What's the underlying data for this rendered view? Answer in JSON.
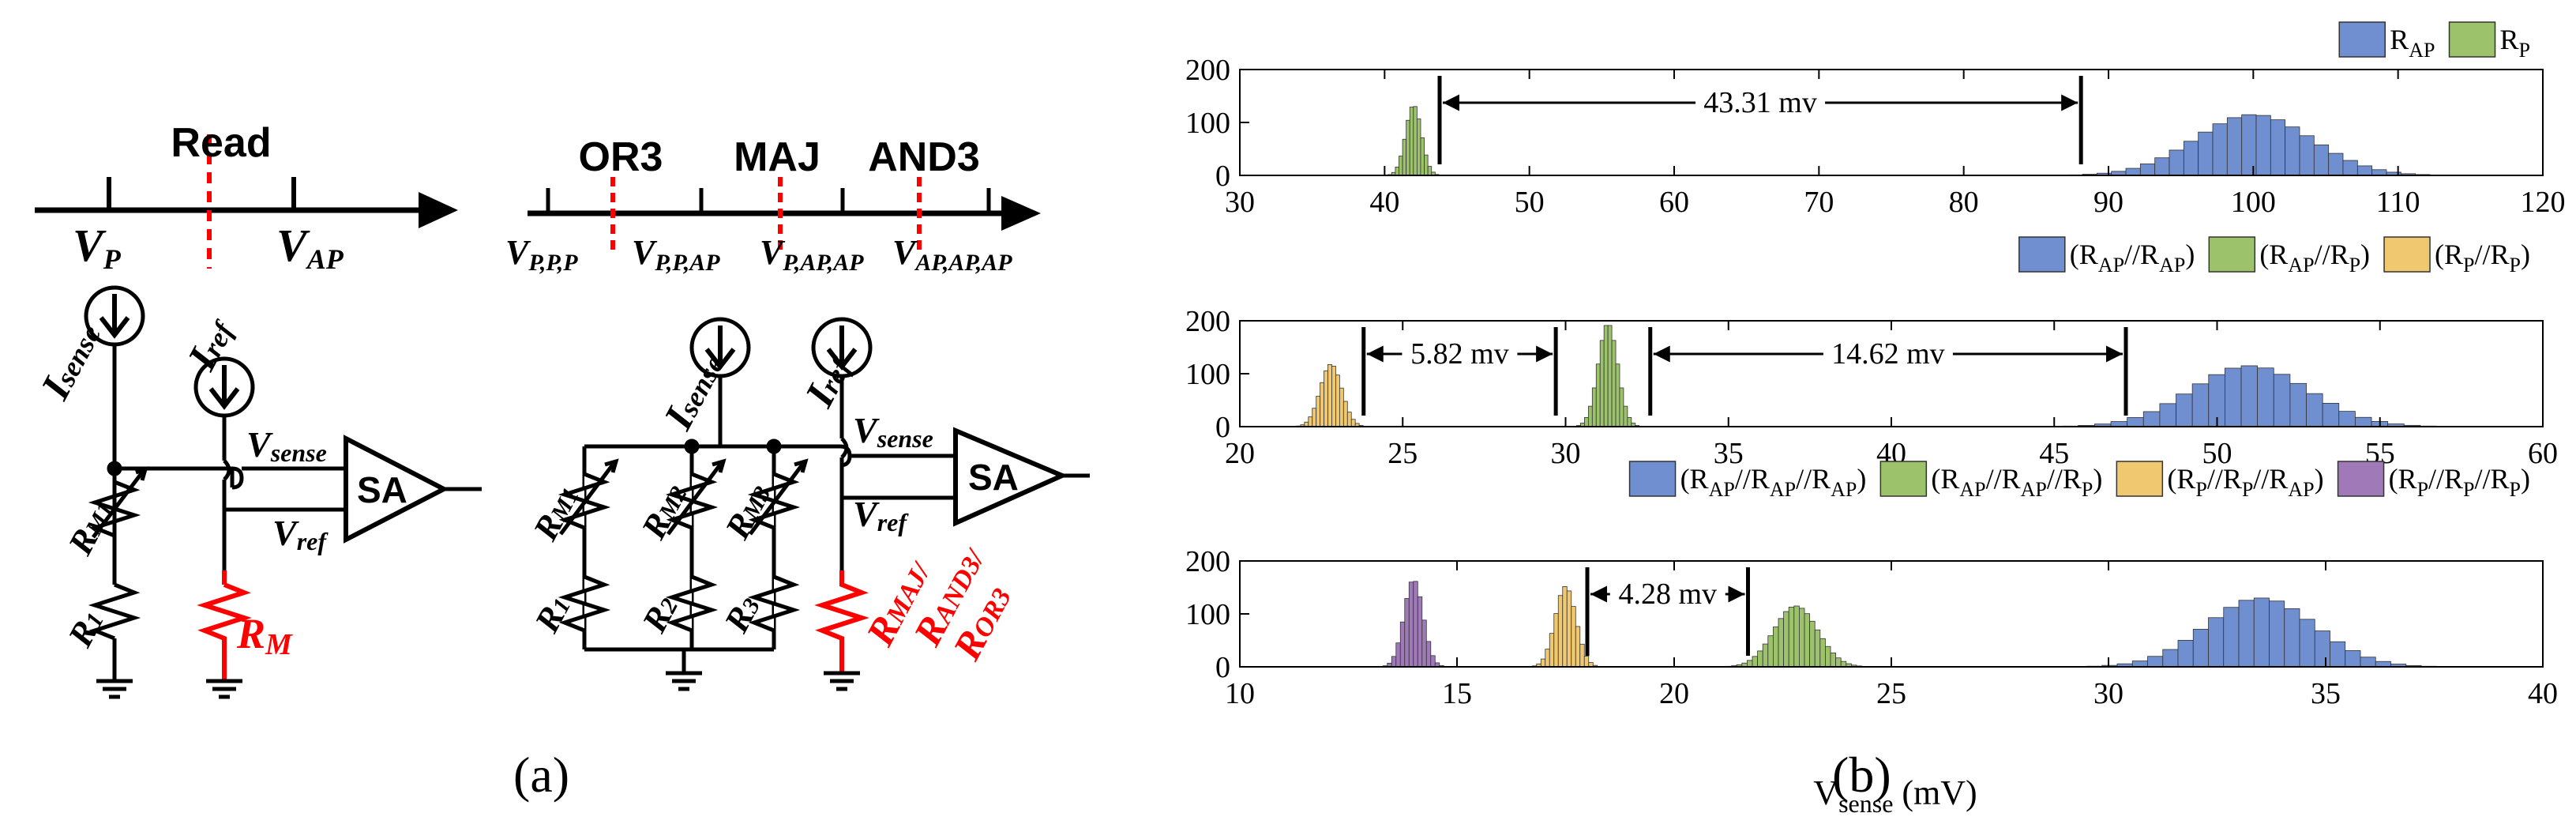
{
  "panel_a": {
    "label": "(a)",
    "read_timeline": {
      "title": "Read",
      "v_p": "V",
      "v_p_sub": "P",
      "v_ap": "V",
      "v_ap_sub": "AP"
    },
    "ops_timeline": {
      "op1": "OR3",
      "op2": "MAJ",
      "op3": "AND3",
      "t1": "V",
      "t1_sub": "P,P,P",
      "t2": "V",
      "t2_sub": "P,P,AP",
      "t3": "V",
      "t3_sub": "P,AP,AP",
      "t4": "V",
      "t4_sub": "AP,AP,AP"
    },
    "circuit1": {
      "isense": "I",
      "isense_sub": "sense",
      "iref": "I",
      "iref_sub": "ref",
      "vsense": "V",
      "vsense_sub": "sense",
      "vref": "V",
      "vref_sub": "ref",
      "sa": "SA",
      "rm1": "R",
      "rm1_sub": "M1",
      "r1": "R",
      "r1_sub": "1",
      "rm": "R",
      "rm_sub": "M"
    },
    "circuit2": {
      "isense": "I",
      "isense_sub": "sense",
      "iref": "I",
      "iref_sub": "ref",
      "vsense": "V",
      "vsense_sub": "sense",
      "vref": "V",
      "vref_sub": "ref",
      "sa": "SA",
      "rm1": "R",
      "rm1_sub": "M1",
      "rm2": "R",
      "rm2_sub": "M2",
      "rm3": "R",
      "rm3_sub": "M3",
      "r1": "R",
      "r1_sub": "1",
      "r2": "R",
      "r2_sub": "2",
      "r3": "R",
      "r3_sub": "3",
      "rmaj": "R",
      "rmaj_sub": "MAJ/",
      "rand3": "R",
      "rand3_sub": "AND3/",
      "ror3": "R",
      "ror3_sub": "OR3"
    },
    "red": "#ff0000"
  },
  "panel_b": {
    "label": "(b)",
    "xlabel": "V",
    "xlabel_sub": "sense",
    "xlabel_unit": " (mV)"
  },
  "chart_data": [
    {
      "type": "histogram",
      "xlim": [
        30,
        120
      ],
      "ylim": [
        0,
        200
      ],
      "xticks": [
        30,
        40,
        50,
        60,
        70,
        80,
        90,
        100,
        110,
        120
      ],
      "yticks": [
        0,
        100,
        200
      ],
      "legend": [
        {
          "main": "R",
          "sub": "AP",
          "color": "#6f8fd0"
        },
        {
          "main": "R",
          "sub": "P",
          "color": "#9cc36c"
        }
      ],
      "series": [
        {
          "name": "RP",
          "color": "#9cc36c",
          "center": 42,
          "peak": 133,
          "width": 0.55,
          "bin": 0.25
        },
        {
          "name": "RAP",
          "color": "#6f8fd0",
          "center": 100,
          "peak": 115,
          "width": 4.0,
          "bin": 1.0
        }
      ],
      "annotations": [
        {
          "x1": 43.8,
          "x2": 88.1,
          "text": "43.31 mv"
        }
      ]
    },
    {
      "type": "histogram",
      "xlim": [
        20,
        60
      ],
      "ylim": [
        0,
        200
      ],
      "xticks": [
        20,
        25,
        30,
        35,
        40,
        45,
        50,
        55,
        60
      ],
      "yticks": [
        0,
        100,
        200
      ],
      "legend": [
        {
          "text": "(R",
          "sub": "AP",
          "text2": "//R",
          "sub2": "AP",
          "text3": ")",
          "color": "#6f8fd0"
        },
        {
          "text": "(R",
          "sub": "AP",
          "text2": "//R",
          "sub2": "P",
          "text3": ")",
          "color": "#9cc36c"
        },
        {
          "text": "(R",
          "sub": "P",
          "text2": "//R",
          "sub2": "P",
          "text3": ")",
          "color": "#f0c870"
        }
      ],
      "series": [
        {
          "name": "RP//RP",
          "color": "#f0c870",
          "center": 22.8,
          "peak": 118,
          "width": 0.33,
          "bin": 0.12
        },
        {
          "name": "RAP//RP",
          "color": "#9cc36c",
          "center": 31.3,
          "peak": 195,
          "width": 0.3,
          "bin": 0.12
        },
        {
          "name": "RAP//RAP",
          "color": "#6f8fd0",
          "center": 51,
          "peak": 115,
          "width": 1.8,
          "bin": 0.5
        }
      ],
      "annotations": [
        {
          "x1": 23.8,
          "x2": 29.7,
          "text": "5.82 mv"
        },
        {
          "x1": 32.6,
          "x2": 47.2,
          "text": "14.62 mv"
        }
      ]
    },
    {
      "type": "histogram",
      "xlim": [
        10,
        40
      ],
      "ylim": [
        0,
        200
      ],
      "xticks": [
        10,
        15,
        20,
        25,
        30,
        35,
        40
      ],
      "yticks": [
        0,
        100,
        200
      ],
      "legend": [
        {
          "text": "(R",
          "sub": "AP",
          "text2": "//R",
          "sub2": "AP",
          "text3": "//R",
          "sub3": "AP",
          "text4": ")",
          "color": "#6f8fd0"
        },
        {
          "text": "(R",
          "sub": "AP",
          "text2": "//R",
          "sub2": "AP",
          "text3": "//R",
          "sub3": "P",
          "text4": ")",
          "color": "#9cc36c"
        },
        {
          "text": "(R",
          "sub": "P",
          "text2": "//R",
          "sub2": "P",
          "text3": "//R",
          "sub3": "AP",
          "text4": ")",
          "color": "#f0c870"
        },
        {
          "text": "(R",
          "sub": "P",
          "text2": "//R",
          "sub2": "P",
          "text3": "//R",
          "sub3": "P",
          "text4": ")",
          "color": "#a07ab8"
        }
      ],
      "series": [
        {
          "name": "RP//RP//RP",
          "color": "#a07ab8",
          "center": 14,
          "peak": 165,
          "width": 0.22,
          "bin": 0.1
        },
        {
          "name": "RP//RP//RAP",
          "color": "#f0c870",
          "center": 17.5,
          "peak": 152,
          "width": 0.24,
          "bin": 0.1
        },
        {
          "name": "RAP//RAP//RP",
          "color": "#9cc36c",
          "center": 22.8,
          "peak": 115,
          "width": 0.5,
          "bin": 0.12
        },
        {
          "name": "RAP//RAP//RAP",
          "color": "#6f8fd0",
          "center": 33.5,
          "peak": 130,
          "width": 1.25,
          "bin": 0.35
        }
      ],
      "annotations": [
        {
          "x1": 18.0,
          "x2": 21.7,
          "text": "4.28 mv"
        }
      ]
    }
  ]
}
